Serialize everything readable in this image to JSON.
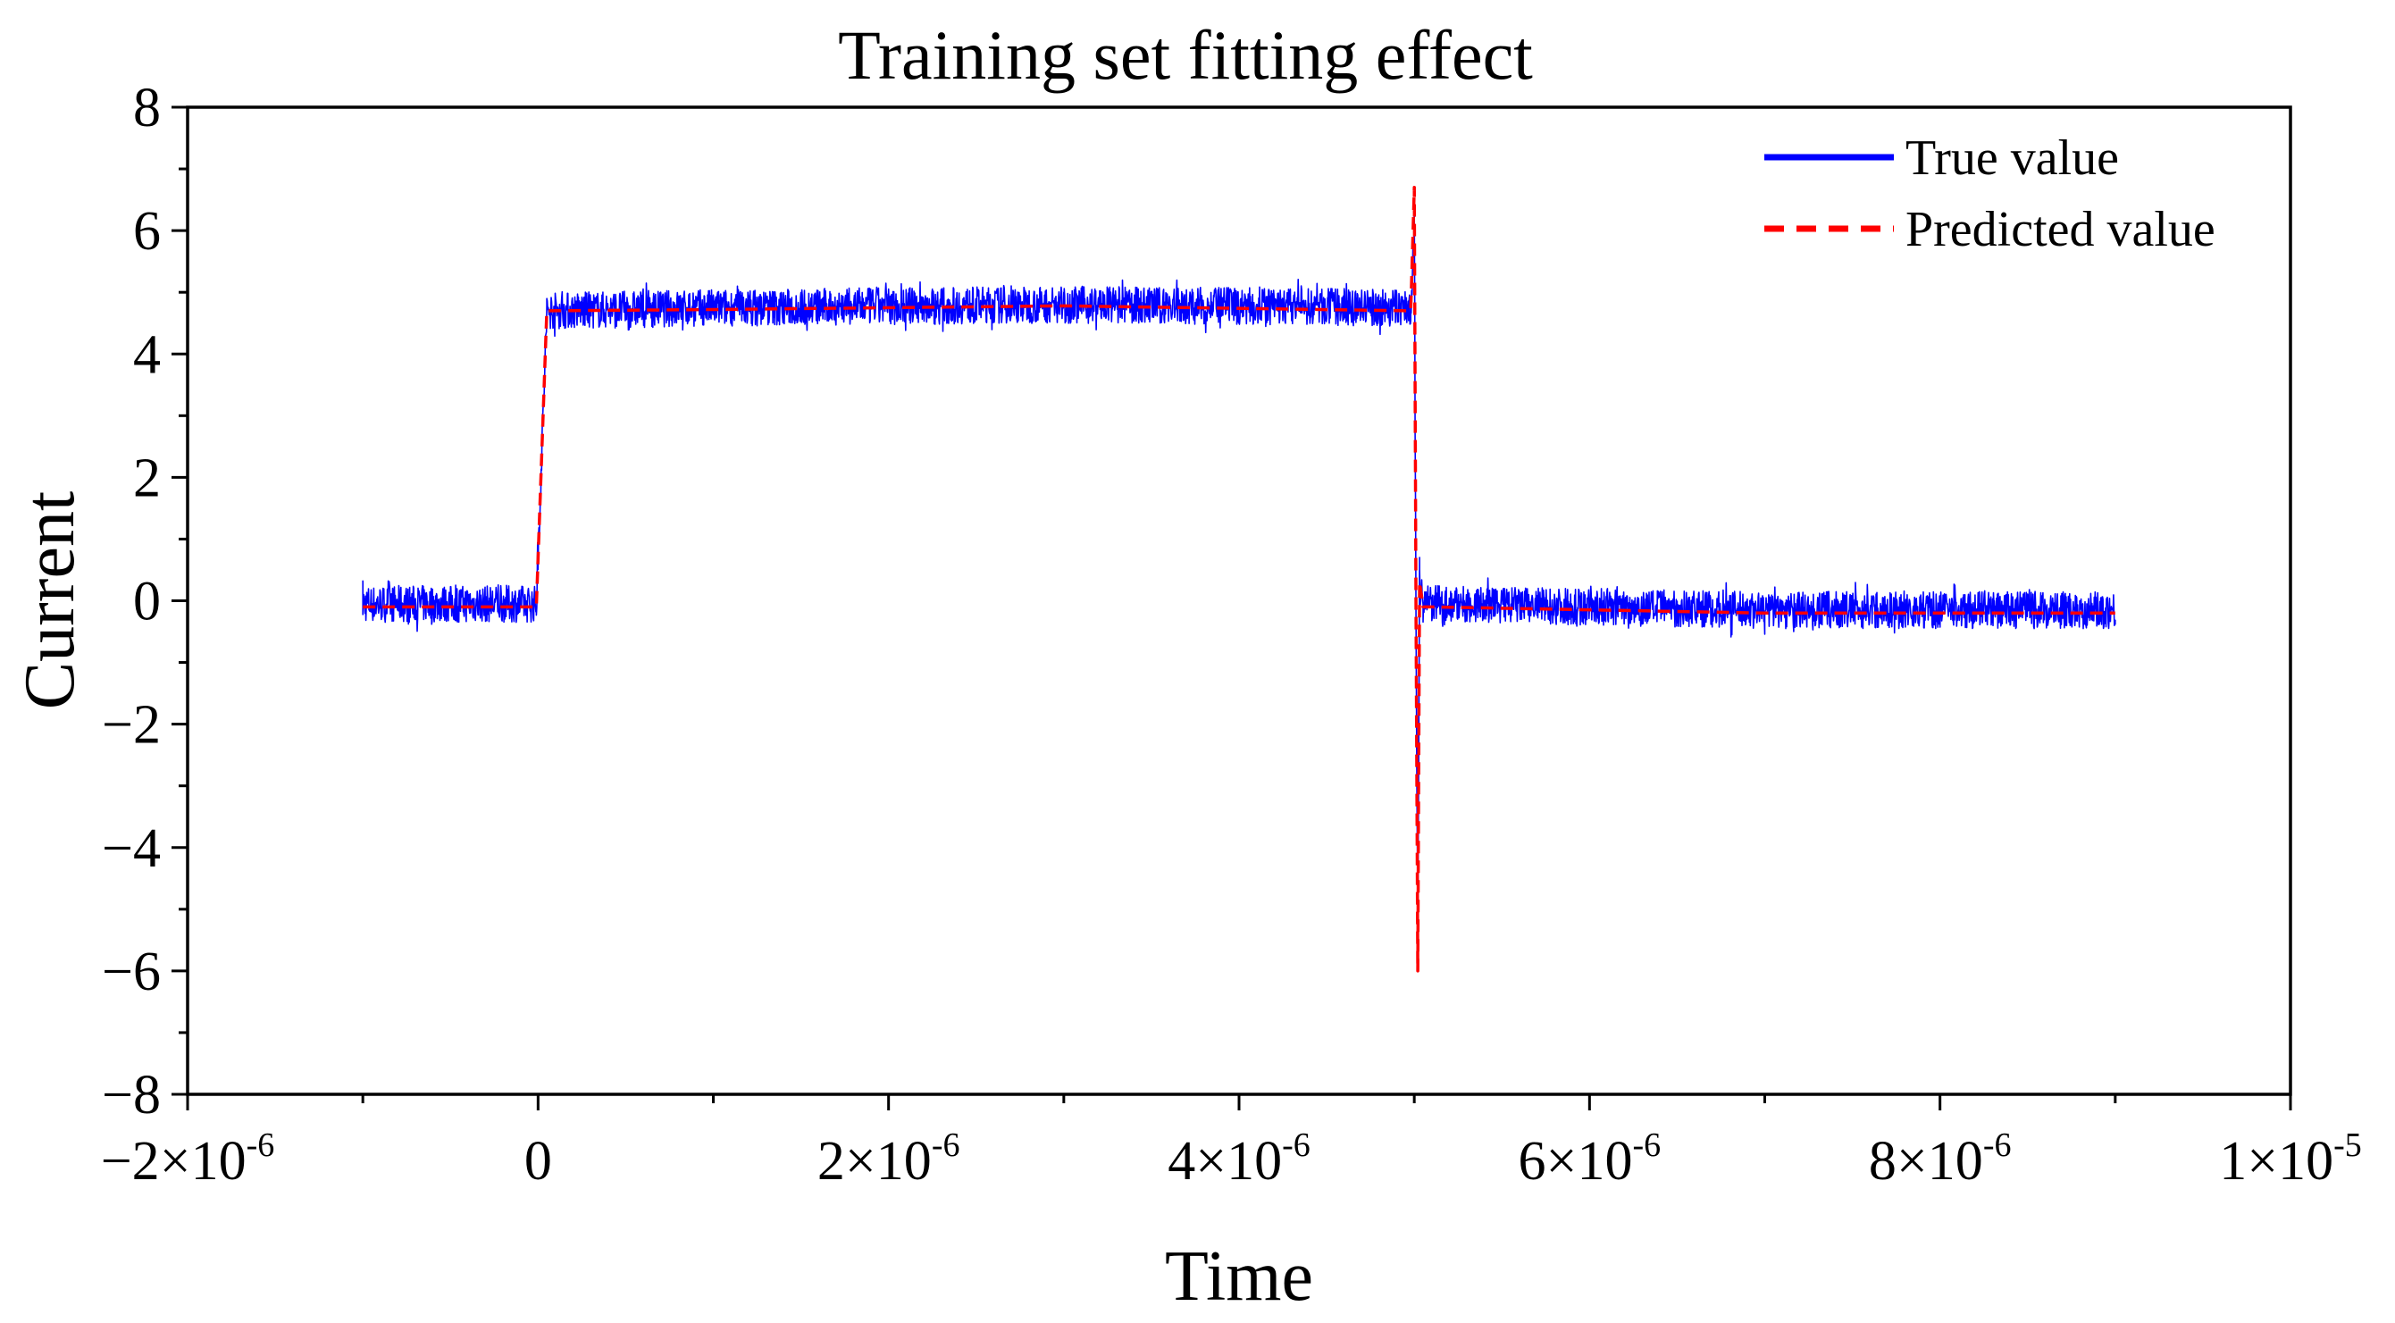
{
  "chart_data": {
    "type": "line",
    "title": "Training set fitting effect",
    "xlabel": "Time",
    "ylabel": "Current",
    "xlim": [
      -2e-06,
      1e-05
    ],
    "ylim": [
      -8,
      8
    ],
    "grid": false,
    "legend_position": "top-right",
    "x_ticks": [
      {
        "value": -2e-06,
        "mantissa": "−2×10",
        "exponent": "-6"
      },
      {
        "value": 0,
        "mantissa": "0",
        "exponent": ""
      },
      {
        "value": 2e-06,
        "mantissa": "2×10",
        "exponent": "-6"
      },
      {
        "value": 4e-06,
        "mantissa": "4×10",
        "exponent": "-6"
      },
      {
        "value": 6e-06,
        "mantissa": "6×10",
        "exponent": "-6"
      },
      {
        "value": 8e-06,
        "mantissa": "8×10",
        "exponent": "-6"
      },
      {
        "value": 1e-05,
        "mantissa": "1×10",
        "exponent": "-5"
      }
    ],
    "y_ticks": [
      {
        "value": 8,
        "label": "8"
      },
      {
        "value": 6,
        "label": "6"
      },
      {
        "value": 4,
        "label": "4"
      },
      {
        "value": 2,
        "label": "2"
      },
      {
        "value": 0,
        "label": "0"
      },
      {
        "value": -2,
        "label": "−2"
      },
      {
        "value": -4,
        "label": "−4"
      },
      {
        "value": -6,
        "label": "−6"
      },
      {
        "value": -8,
        "label": "−8"
      }
    ],
    "series": [
      {
        "name": "True value",
        "color": "#0000ff",
        "style": "solid",
        "noise_amplitude": 0.3,
        "x": [
          -1e-06,
          -1e-08,
          5e-08,
          1e-06,
          3e-06,
          4.98e-06,
          5e-06,
          5.01e-06,
          5.02e-06,
          5.03e-06,
          5.05e-06,
          5.1e-06,
          7e-06,
          9e-06
        ],
        "y": [
          -0.05,
          -0.05,
          4.7,
          4.75,
          4.8,
          4.75,
          6.1,
          -0.3,
          -5.4,
          0.5,
          -0.05,
          -0.05,
          -0.15,
          -0.15
        ]
      },
      {
        "name": "Predicted value",
        "color": "#ff0000",
        "style": "dashed",
        "x": [
          -1e-06,
          -1e-08,
          5e-08,
          1e-06,
          3e-06,
          4.98e-06,
          5e-06,
          5.01e-06,
          5.02e-06,
          5.03e-06,
          5.05e-06,
          5.1e-06,
          7e-06,
          9e-06
        ],
        "y": [
          -0.1,
          -0.1,
          4.7,
          4.72,
          4.78,
          4.7,
          6.7,
          -0.2,
          -6.0,
          0.3,
          -0.1,
          -0.1,
          -0.2,
          -0.2
        ]
      }
    ]
  }
}
